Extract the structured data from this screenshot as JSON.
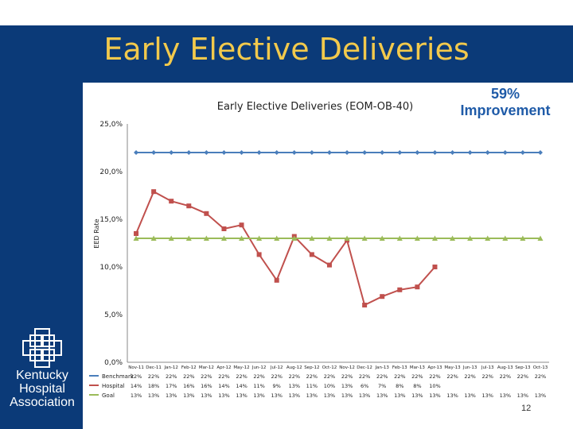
{
  "slide": {
    "title": "Early Elective Deliveries",
    "improvement_lines": [
      "59%",
      "Improvement"
    ],
    "page_number": "12",
    "logo_text_lines": [
      "Kentucky",
      "Hospital",
      "Association"
    ]
  },
  "colors": {
    "title_band": "#0b3a78",
    "title_text": "#f2c94c",
    "benchmark": "#4a7ebb",
    "hospital": "#c0504d",
    "goal": "#9bbb59",
    "improvement_text": "#1f5ba8"
  },
  "chart_data": {
    "type": "line",
    "title": "Early Elective Deliveries (EOM-OB-40)",
    "ylabel": "EED Rate",
    "ylim": [
      0,
      25
    ],
    "yticks": [
      "0,0%",
      "5,0%",
      "10,0%",
      "15,0%",
      "20,0%",
      "25,0%"
    ],
    "grid": false,
    "legend": "table-below",
    "categories": [
      "Nov-11",
      "Dec-11",
      "Jan-12",
      "Feb-12",
      "Mar-12",
      "Apr-12",
      "May-12",
      "Jun-12",
      "Jul-12",
      "Aug-12",
      "Sep-12",
      "Oct-12",
      "Nov-12",
      "Dec-12",
      "Jan-13",
      "Feb-13",
      "Mar-13",
      "Apr-13",
      "May-13",
      "Jun-13",
      "Jul-13",
      "Aug-13",
      "Sep-13",
      "Oct-13"
    ],
    "category_labels": [
      "Nov-11",
      "Dec-11",
      "Jan-12",
      "Feb-12",
      "Mar-12",
      "Apr-12",
      "May-12",
      "Jun-12",
      "Jul-12",
      "Aug-12",
      "Sep-12",
      "Oct-12",
      "Nov-12",
      "Dec-12",
      "Jan-13",
      "Feb-13",
      "Mar-13",
      "Apr-13",
      "May-13",
      "Jun-13",
      "Jul-13",
      "Aug-13",
      "Sep-13",
      "Oct-13"
    ],
    "series": [
      {
        "name": "Benchmark",
        "values": [
          22,
          22,
          22,
          22,
          22,
          22,
          22,
          22,
          22,
          22,
          22,
          22,
          22,
          22,
          22,
          22,
          22,
          22,
          22,
          22,
          22,
          22,
          22,
          22
        ],
        "table": [
          "22%",
          "22%",
          "22%",
          "22%",
          "22%",
          "22%",
          "22%",
          "22%",
          "22%",
          "22%",
          "22%",
          "22%",
          "22%",
          "22%",
          "22%",
          "22%",
          "22%",
          "22%",
          "22%",
          "22%",
          "22%",
          "22%",
          "22%",
          "22%"
        ]
      },
      {
        "name": "Hospital",
        "values": [
          13.5,
          17.9,
          16.9,
          16.4,
          15.6,
          14.0,
          14.4,
          11.3,
          8.6,
          13.2,
          11.3,
          10.2,
          12.8,
          6.0,
          6.9,
          7.6,
          7.9,
          10.0,
          null,
          null,
          null,
          null,
          null,
          null
        ],
        "table": [
          "14%",
          "18%",
          "17%",
          "16%",
          "16%",
          "14%",
          "14%",
          "11%",
          "9%",
          "13%",
          "11%",
          "10%",
          "13%",
          "6%",
          "7%",
          "8%",
          "8%",
          "10%",
          "",
          "",
          "",
          "",
          "",
          ""
        ]
      },
      {
        "name": "Goal",
        "values": [
          13,
          13,
          13,
          13,
          13,
          13,
          13,
          13,
          13,
          13,
          13,
          13,
          13,
          13,
          13,
          13,
          13,
          13,
          13,
          13,
          13,
          13,
          13,
          13
        ],
        "table": [
          "13%",
          "13%",
          "13%",
          "13%",
          "13%",
          "13%",
          "13%",
          "13%",
          "13%",
          "13%",
          "13%",
          "13%",
          "13%",
          "13%",
          "13%",
          "13%",
          "13%",
          "13%",
          "13%",
          "13%",
          "13%",
          "13%",
          "13%",
          "13%"
        ]
      }
    ]
  }
}
